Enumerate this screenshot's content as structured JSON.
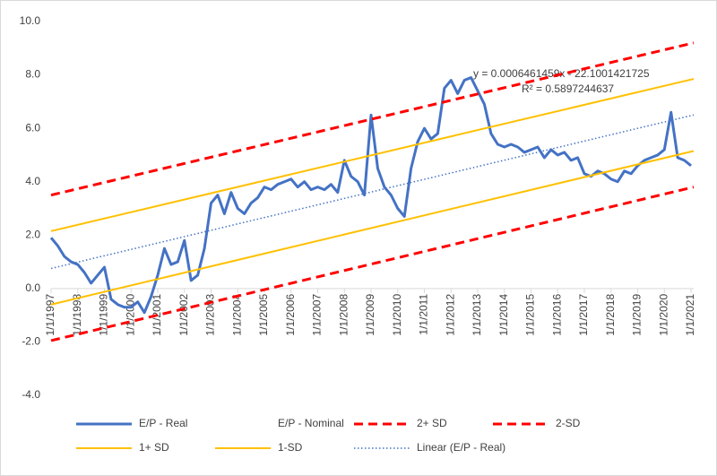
{
  "chart_data": {
    "type": "line",
    "annotations": [
      "y = 0.0006461459x - 22.1001421725",
      "R² = 0.5897244637"
    ],
    "xlim": [
      1997,
      2021.1
    ],
    "xticks": [
      {
        "value": 1997,
        "label": "1/1/1997"
      },
      {
        "value": 1998,
        "label": "1/1/1998"
      },
      {
        "value": 1999,
        "label": "1/1/1999"
      },
      {
        "value": 2000,
        "label": "1/1/2000"
      },
      {
        "value": 2001,
        "label": "1/1/2001"
      },
      {
        "value": 2002,
        "label": "1/1/2002"
      },
      {
        "value": 2003,
        "label": "1/1/2003"
      },
      {
        "value": 2004,
        "label": "1/1/2004"
      },
      {
        "value": 2005,
        "label": "1/1/2005"
      },
      {
        "value": 2006,
        "label": "1/1/2006"
      },
      {
        "value": 2007,
        "label": "1/1/2007"
      },
      {
        "value": 2008,
        "label": "1/1/2008"
      },
      {
        "value": 2009,
        "label": "1/1/2009"
      },
      {
        "value": 2010,
        "label": "1/1/2010"
      },
      {
        "value": 2011,
        "label": "1/1/2011"
      },
      {
        "value": 2012,
        "label": "1/1/2012"
      },
      {
        "value": 2013,
        "label": "1/1/2013"
      },
      {
        "value": 2014,
        "label": "1/1/2014"
      },
      {
        "value": 2015,
        "label": "1/1/2015"
      },
      {
        "value": 2016,
        "label": "1/1/2016"
      },
      {
        "value": 2017,
        "label": "1/1/2017"
      },
      {
        "value": 2018,
        "label": "1/1/2018"
      },
      {
        "value": 2019,
        "label": "1/1/2019"
      },
      {
        "value": 2020,
        "label": "1/1/2020"
      },
      {
        "value": 2021,
        "label": "1/1/2021"
      }
    ],
    "ylim": [
      -4,
      10
    ],
    "yticks": [
      {
        "value": -4,
        "label": "-4.0"
      },
      {
        "value": -2,
        "label": "-2.0"
      },
      {
        "value": 0,
        "label": "0.0"
      },
      {
        "value": 2,
        "label": "2.0"
      },
      {
        "value": 4,
        "label": "4.0"
      },
      {
        "value": 6,
        "label": "6.0"
      },
      {
        "value": 8,
        "label": "8.0"
      },
      {
        "value": 10,
        "label": "10.0"
      }
    ],
    "series": [
      {
        "name": "E/P - Real",
        "color": "#4472c4",
        "style": "solid",
        "x": [
          1997,
          1997.25,
          1997.5,
          1997.75,
          1998,
          1998.25,
          1998.5,
          1998.75,
          1999,
          1999.25,
          1999.5,
          1999.75,
          2000,
          2000.25,
          2000.5,
          2000.75,
          2001,
          2001.25,
          2001.5,
          2001.75,
          2002,
          2002.25,
          2002.5,
          2002.75,
          2003,
          2003.25,
          2003.5,
          2003.75,
          2004,
          2004.25,
          2004.5,
          2004.75,
          2005,
          2005.25,
          2005.5,
          2005.75,
          2006,
          2006.25,
          2006.5,
          2006.75,
          2007,
          2007.25,
          2007.5,
          2007.75,
          2008,
          2008.25,
          2008.5,
          2008.75,
          2009,
          2009.25,
          2009.5,
          2009.75,
          2010,
          2010.25,
          2010.5,
          2010.75,
          2011,
          2011.25,
          2011.5,
          2011.75,
          2012,
          2012.25,
          2012.5,
          2012.75,
          2013,
          2013.25,
          2013.5,
          2013.75,
          2014,
          2014.25,
          2014.5,
          2014.75,
          2015,
          2015.25,
          2015.5,
          2015.75,
          2016,
          2016.25,
          2016.5,
          2016.75,
          2017,
          2017.25,
          2017.5,
          2017.75,
          2018,
          2018.25,
          2018.5,
          2018.75,
          2019,
          2019.25,
          2019.5,
          2019.75,
          2020,
          2020.25,
          2020.5,
          2020.75,
          2021
        ],
        "values": [
          1.9,
          1.6,
          1.2,
          1.0,
          0.9,
          0.6,
          0.2,
          0.5,
          0.8,
          -0.4,
          -0.6,
          -0.7,
          -0.7,
          -0.5,
          -0.9,
          -0.3,
          0.5,
          1.5,
          0.9,
          1.0,
          1.8,
          0.3,
          0.5,
          1.5,
          3.2,
          3.5,
          2.8,
          3.6,
          3.0,
          2.8,
          3.2,
          3.4,
          3.8,
          3.7,
          3.9,
          4.0,
          4.1,
          3.8,
          4.0,
          3.7,
          3.8,
          3.7,
          3.9,
          3.6,
          4.8,
          4.2,
          4.0,
          3.5,
          6.5,
          4.5,
          3.8,
          3.5,
          3.0,
          2.7,
          4.5,
          5.5,
          6.0,
          5.6,
          5.8,
          7.5,
          7.8,
          7.3,
          7.8,
          7.9,
          7.4,
          6.9,
          5.8,
          5.4,
          5.3,
          5.4,
          5.3,
          5.1,
          5.2,
          5.3,
          4.9,
          5.2,
          5.0,
          5.1,
          4.8,
          4.9,
          4.3,
          4.2,
          4.4,
          4.3,
          4.1,
          4.0,
          4.4,
          4.3,
          4.6,
          4.8,
          4.9,
          5.0,
          5.2,
          6.6,
          4.9,
          4.8,
          4.6
        ]
      },
      {
        "name": "E/P - Nominal"
      },
      {
        "name": "2+ SD",
        "color": "#ff0000",
        "style": "dashed",
        "x": [
          1997,
          2021.1
        ],
        "values": [
          3.5,
          9.2
        ]
      },
      {
        "name": "2-SD",
        "color": "#ff0000",
        "style": "dashed",
        "x": [
          1997,
          2021.1
        ],
        "values": [
          -1.95,
          3.8
        ]
      },
      {
        "name": "1+ SD",
        "color": "#ffc000",
        "style": "solid",
        "x": [
          1997,
          2021.1
        ],
        "values": [
          2.15,
          7.85
        ]
      },
      {
        "name": "1-SD",
        "color": "#ffc000",
        "style": "solid",
        "x": [
          1997,
          2021.1
        ],
        "values": [
          -0.6,
          5.15
        ]
      },
      {
        "name": "Linear (E/P - Real)",
        "color": "#4472c4",
        "style": "dotted",
        "x": [
          1997,
          2021.1
        ],
        "values": [
          0.75,
          6.5
        ]
      }
    ]
  }
}
